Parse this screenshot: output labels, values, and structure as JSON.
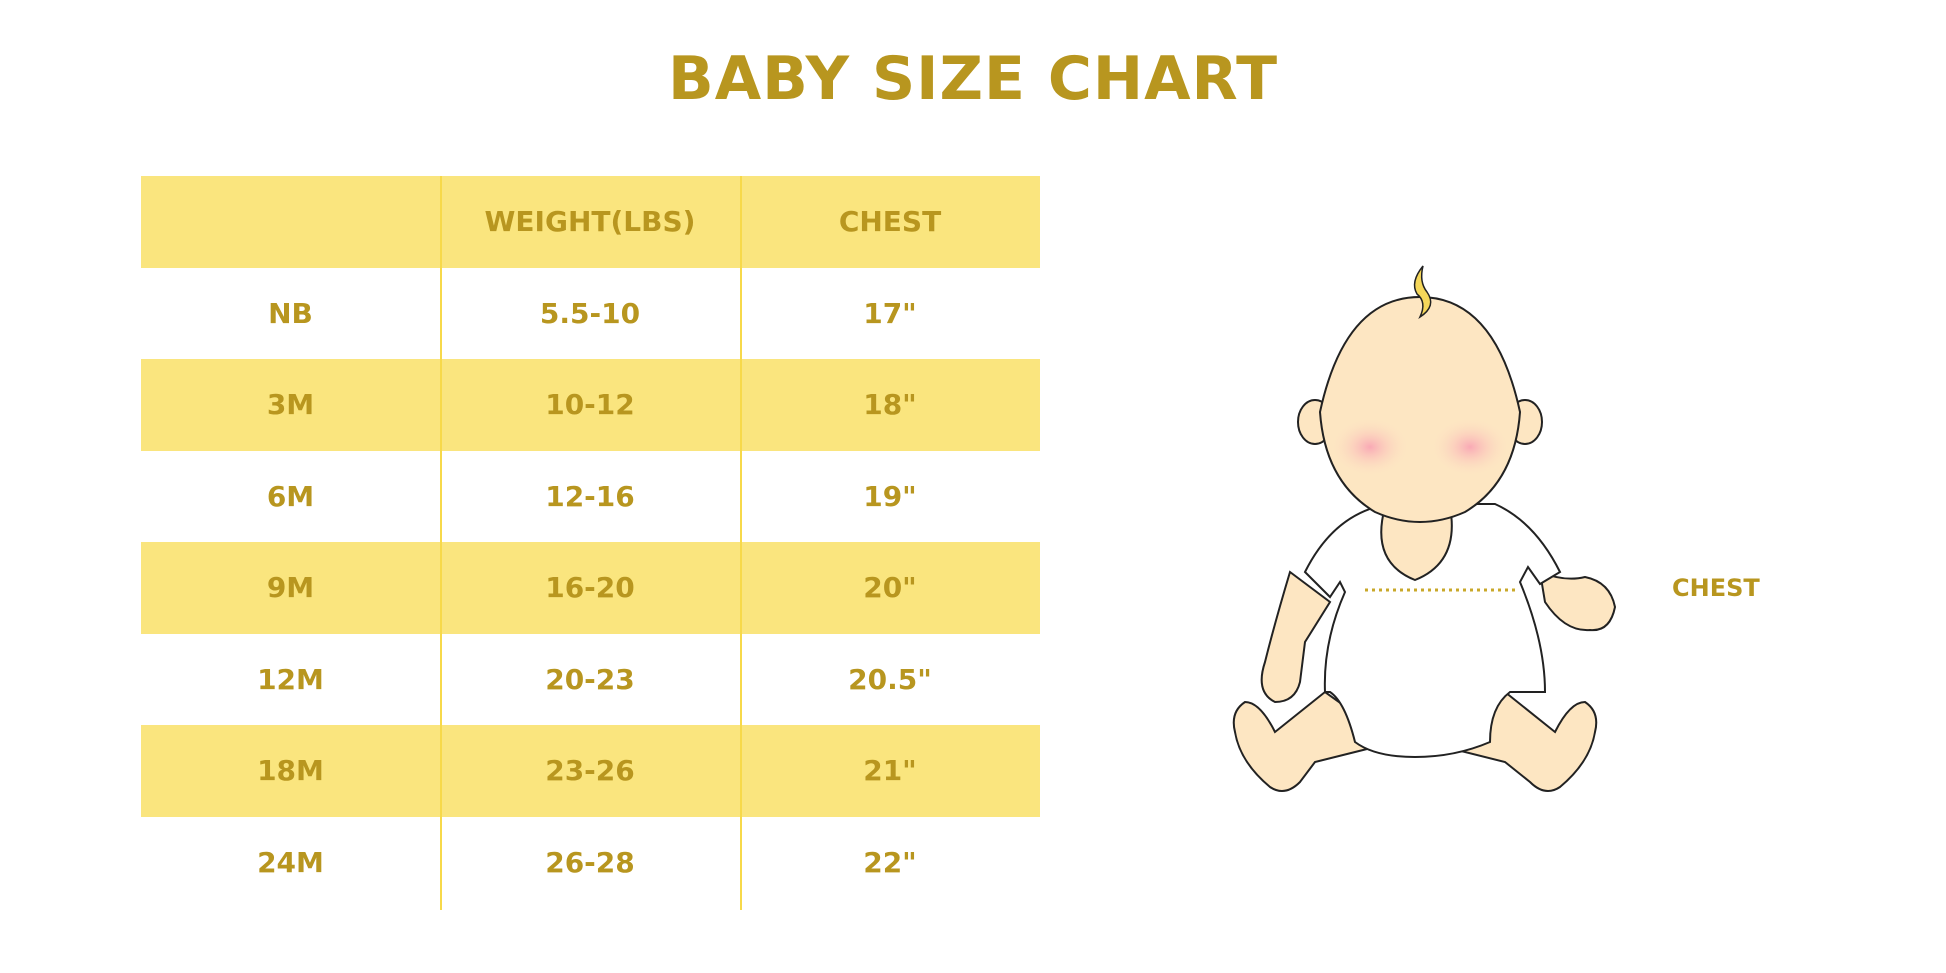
{
  "title": "BABY SIZE CHART",
  "table": {
    "headers": [
      "",
      "WEIGHT(LBS)",
      "CHEST"
    ],
    "rows": [
      [
        "NB",
        "5.5-10",
        "17\""
      ],
      [
        "3M",
        "10-12",
        "18\""
      ],
      [
        "6M",
        "12-16",
        "19\""
      ],
      [
        "9M",
        "16-20",
        "20\""
      ],
      [
        "12M",
        "20-23",
        "20.5\""
      ],
      [
        "18M",
        "23-26",
        "21\""
      ],
      [
        "24M",
        "26-28",
        "22\""
      ]
    ]
  },
  "illustration": {
    "chest_label": "CHEST"
  },
  "colors": {
    "text": "#b8961f",
    "band": "#fae57e",
    "divider": "#f7d94a"
  }
}
